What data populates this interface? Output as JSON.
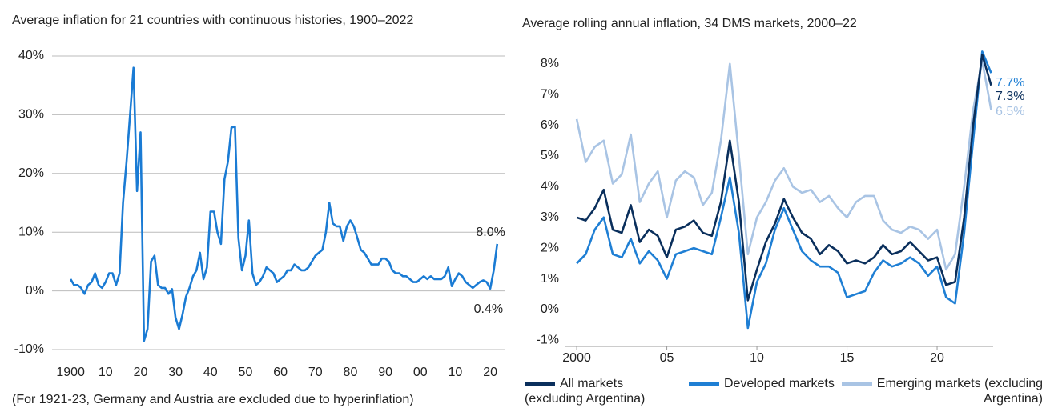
{
  "chart_data": [
    {
      "type": "line",
      "title": "Average inflation for 21 countries with continuous histories, 1900–2022",
      "note": "(For 1921-23, Germany and Austria are excluded due to hyperinflation)",
      "color": "#1a7bd4",
      "grid": true,
      "x": [
        1900,
        1901,
        1902,
        1903,
        1904,
        1905,
        1906,
        1907,
        1908,
        1909,
        1910,
        1911,
        1912,
        1913,
        1914,
        1915,
        1916,
        1917,
        1918,
        1919,
        1920,
        1921,
        1922,
        1923,
        1924,
        1925,
        1926,
        1927,
        1928,
        1929,
        1930,
        1931,
        1932,
        1933,
        1934,
        1935,
        1936,
        1937,
        1938,
        1939,
        1940,
        1941,
        1942,
        1943,
        1944,
        1945,
        1946,
        1947,
        1948,
        1949,
        1950,
        1951,
        1952,
        1953,
        1954,
        1955,
        1956,
        1957,
        1958,
        1959,
        1960,
        1961,
        1962,
        1963,
        1964,
        1965,
        1966,
        1967,
        1968,
        1969,
        1970,
        1971,
        1972,
        1973,
        1974,
        1975,
        1976,
        1977,
        1978,
        1979,
        1980,
        1981,
        1982,
        1983,
        1984,
        1985,
        1986,
        1987,
        1988,
        1989,
        1990,
        1991,
        1992,
        1993,
        1994,
        1995,
        1996,
        1997,
        1998,
        1999,
        2000,
        2001,
        2002,
        2003,
        2004,
        2005,
        2006,
        2007,
        2008,
        2009,
        2010,
        2011,
        2012,
        2013,
        2014,
        2015,
        2016,
        2017,
        2018,
        2019,
        2020,
        2021,
        2022
      ],
      "values": [
        2,
        1,
        1,
        0.5,
        -0.5,
        1,
        1.5,
        3,
        1,
        0.5,
        1.5,
        3,
        3,
        1,
        3,
        15,
        22,
        30,
        38,
        17,
        27,
        -8.5,
        -6.5,
        5,
        6,
        1,
        0.5,
        0.5,
        -0.5,
        0.3,
        -4.5,
        -6.5,
        -4,
        -1,
        0.5,
        2.5,
        3.5,
        6.5,
        2,
        4,
        13.5,
        13.5,
        10,
        8,
        19,
        22,
        27.8,
        28,
        9,
        3.5,
        6,
        12,
        3,
        1,
        1.5,
        2.5,
        4,
        3.5,
        3,
        1.5,
        2,
        2.5,
        3.5,
        3.5,
        4.5,
        4,
        3.5,
        3.5,
        4,
        5,
        6,
        6.5,
        7,
        10,
        15,
        11.5,
        11,
        11,
        8.5,
        11,
        12,
        11,
        9,
        7,
        6.5,
        5.5,
        4.5,
        4.5,
        4.5,
        5.5,
        5.5,
        5,
        3.5,
        3,
        3,
        2.5,
        2.5,
        2,
        1.5,
        1.5,
        2,
        2.5,
        2,
        2.5,
        2,
        2,
        2,
        2.5,
        4,
        0.8,
        2,
        3,
        2.5,
        1.5,
        1,
        0.5,
        1,
        1.5,
        1.8,
        1.5,
        0.4,
        3.5,
        8.0
      ],
      "annotations": [
        {
          "text": "8.0%",
          "x": 2022,
          "y": 8.0
        },
        {
          "text": "0.4%",
          "x": 2020,
          "y": 0.4
        }
      ],
      "xlim": [
        1894.7,
        2024.1
      ],
      "xticks": [
        1900,
        {
          "value": 1910,
          "label": "10"
        },
        {
          "value": 1920,
          "label": "20"
        },
        {
          "value": 1930,
          "label": "30"
        },
        {
          "value": 1940,
          "label": "40"
        },
        {
          "value": 1950,
          "label": "50"
        },
        {
          "value": 1960,
          "label": "60"
        },
        {
          "value": 1970,
          "label": "70"
        },
        {
          "value": 1980,
          "label": "80"
        },
        {
          "value": 1990,
          "label": "90"
        },
        {
          "value": 2000,
          "label": "00"
        },
        {
          "value": 2010,
          "label": "10"
        },
        {
          "value": 2020,
          "label": "20"
        }
      ],
      "ylim": [
        -10,
        40
      ],
      "yticks": [
        {
          "value": -10,
          "label": "-10%"
        },
        {
          "value": 0,
          "label": "0%"
        },
        {
          "value": 10,
          "label": "10%"
        },
        {
          "value": 20,
          "label": "20%"
        },
        {
          "value": 30,
          "label": "30%"
        },
        {
          "value": 40,
          "label": "40%"
        }
      ]
    },
    {
      "type": "line",
      "title": "Average rolling annual inflation, 34 DMS markets, 2000–22",
      "grid": false,
      "x": [
        2000,
        2000.5,
        2001,
        2001.5,
        2002,
        2002.5,
        2003,
        2003.5,
        2004,
        2004.5,
        2005,
        2005.5,
        2006,
        2006.5,
        2007,
        2007.5,
        2008,
        2008.5,
        2009,
        2009.5,
        2010,
        2010.5,
        2011,
        2011.5,
        2012,
        2012.5,
        2013,
        2013.5,
        2014,
        2014.5,
        2015,
        2015.5,
        2016,
        2016.5,
        2017,
        2017.5,
        2018,
        2018.5,
        2019,
        2019.5,
        2020,
        2020.5,
        2021,
        2021.5,
        2022,
        2022.5,
        2023
      ],
      "series": [
        {
          "name": "Emerging markets (excluding Argentina)",
          "color": "#a9c4e4",
          "end_label": "6.5%",
          "values": [
            6.2,
            4.8,
            5.3,
            5.5,
            4.1,
            4.4,
            5.7,
            3.5,
            4.1,
            4.5,
            3.0,
            4.2,
            4.5,
            4.3,
            3.4,
            3.8,
            5.5,
            8.0,
            5.0,
            1.8,
            3.0,
            3.5,
            4.2,
            4.6,
            4.0,
            3.8,
            3.9,
            3.5,
            3.7,
            3.3,
            3.0,
            3.5,
            3.7,
            3.7,
            2.9,
            2.6,
            2.5,
            2.7,
            2.6,
            2.3,
            2.6,
            1.3,
            1.8,
            4.0,
            6.5,
            8.1,
            6.5
          ]
        },
        {
          "name": "Developed markets",
          "color": "#1f7fd4",
          "end_label": "7.7%",
          "values": [
            1.5,
            1.8,
            2.6,
            3.0,
            1.8,
            1.7,
            2.3,
            1.5,
            1.9,
            1.6,
            1.0,
            1.8,
            1.9,
            2.0,
            1.9,
            1.8,
            3.0,
            4.3,
            2.5,
            -0.6,
            0.9,
            1.5,
            2.6,
            3.3,
            2.6,
            1.9,
            1.6,
            1.4,
            1.4,
            1.2,
            0.4,
            0.5,
            0.6,
            1.2,
            1.6,
            1.4,
            1.5,
            1.7,
            1.5,
            1.1,
            1.4,
            0.4,
            0.2,
            2.5,
            5.5,
            8.4,
            7.7
          ]
        },
        {
          "name": "All markets (excluding Argentina)",
          "color": "#0a2f5c",
          "end_label": "7.3%",
          "values": [
            3.0,
            2.9,
            3.3,
            3.9,
            2.6,
            2.5,
            3.4,
            2.2,
            2.6,
            2.4,
            1.7,
            2.6,
            2.7,
            2.9,
            2.5,
            2.4,
            3.5,
            5.5,
            3.5,
            0.3,
            1.3,
            2.2,
            2.8,
            3.6,
            3.0,
            2.5,
            2.3,
            1.8,
            2.1,
            1.9,
            1.5,
            1.6,
            1.5,
            1.7,
            2.1,
            1.8,
            1.9,
            2.2,
            1.9,
            1.6,
            1.7,
            0.8,
            0.9,
            3.0,
            6.0,
            8.3,
            7.3
          ]
        }
      ],
      "xlim": [
        1999.33,
        2023.11
      ],
      "xticks": [
        2000,
        {
          "value": 2005,
          "label": "05"
        },
        {
          "value": 2010,
          "label": "10"
        },
        {
          "value": 2015,
          "label": "15"
        },
        {
          "value": 2020,
          "label": "20"
        }
      ],
      "ylim": [
        -1.2,
        8.5
      ],
      "yticks": [
        {
          "value": -1,
          "label": "-1%"
        },
        {
          "value": 0,
          "label": "0%"
        },
        {
          "value": 1,
          "label": "1%"
        },
        {
          "value": 2,
          "label": "2%"
        },
        {
          "value": 3,
          "label": "3%"
        },
        {
          "value": 4,
          "label": "4%"
        },
        {
          "value": 5,
          "label": "5%"
        },
        {
          "value": 6,
          "label": "6%"
        },
        {
          "value": 7,
          "label": "7%"
        },
        {
          "value": 8,
          "label": "8%"
        }
      ]
    }
  ]
}
